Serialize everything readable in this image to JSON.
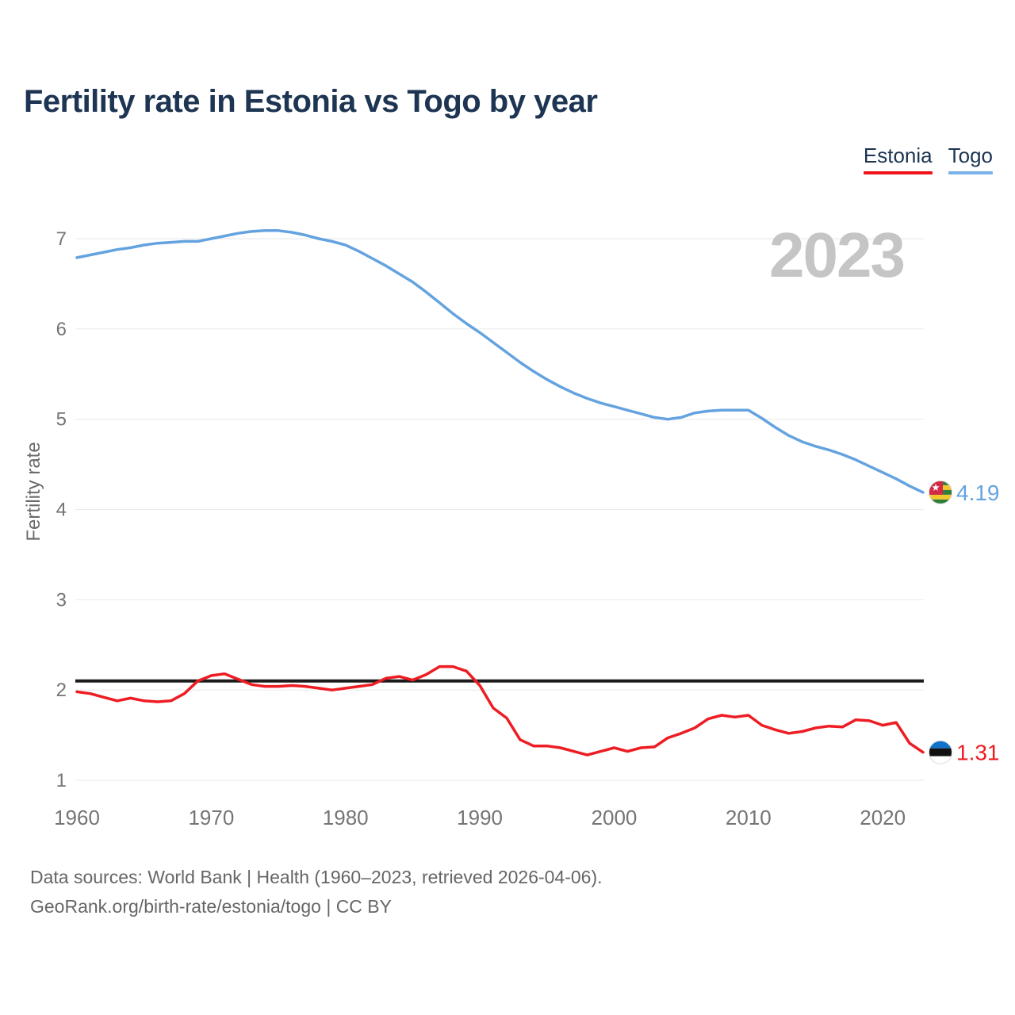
{
  "header": {
    "title": "Fertility rate in Estonia vs Togo by year"
  },
  "legend": {
    "items": [
      {
        "label": "Estonia",
        "color": "#f01318"
      },
      {
        "label": "Togo",
        "color": "#79b2e8"
      }
    ]
  },
  "chart_data": {
    "type": "line",
    "title": "Fertility rate in Estonia vs Togo by year",
    "xlabel": "",
    "ylabel": "Fertility rate",
    "watermark": "2023",
    "grid": true,
    "legend_position": "top-right",
    "xlim": [
      1960,
      2023
    ],
    "ylim": [
      1,
      7
    ],
    "x_ticks": [
      1960,
      1970,
      1980,
      1990,
      2000,
      2010,
      2020
    ],
    "y_ticks": [
      1,
      2,
      3,
      4,
      5,
      6,
      7
    ],
    "replacement_level_line": 2.1,
    "years": [
      1960,
      1961,
      1962,
      1963,
      1964,
      1965,
      1966,
      1967,
      1968,
      1969,
      1970,
      1971,
      1972,
      1973,
      1974,
      1975,
      1976,
      1977,
      1978,
      1979,
      1980,
      1981,
      1982,
      1983,
      1984,
      1985,
      1986,
      1987,
      1988,
      1989,
      1990,
      1991,
      1992,
      1993,
      1994,
      1995,
      1996,
      1997,
      1998,
      1999,
      2000,
      2001,
      2002,
      2003,
      2004,
      2005,
      2006,
      2007,
      2008,
      2009,
      2010,
      2011,
      2012,
      2013,
      2014,
      2015,
      2016,
      2017,
      2018,
      2019,
      2020,
      2021,
      2022,
      2023
    ],
    "series": [
      {
        "name": "Estonia",
        "color": "#ee1c23",
        "end_label": "1.31",
        "end_value": 1.31,
        "values": [
          1.98,
          1.96,
          1.92,
          1.88,
          1.91,
          1.88,
          1.87,
          1.88,
          1.96,
          2.1,
          2.16,
          2.18,
          2.12,
          2.06,
          2.04,
          2.04,
          2.05,
          2.04,
          2.02,
          2.0,
          2.02,
          2.04,
          2.06,
          2.13,
          2.15,
          2.11,
          2.17,
          2.26,
          2.26,
          2.21,
          2.05,
          1.8,
          1.69,
          1.45,
          1.38,
          1.38,
          1.36,
          1.32,
          1.28,
          1.32,
          1.36,
          1.32,
          1.36,
          1.37,
          1.47,
          1.52,
          1.58,
          1.68,
          1.72,
          1.7,
          1.72,
          1.61,
          1.56,
          1.52,
          1.54,
          1.58,
          1.6,
          1.59,
          1.67,
          1.66,
          1.61,
          1.64,
          1.41,
          1.31
        ]
      },
      {
        "name": "Togo",
        "color": "#64a3df",
        "end_label": "4.19",
        "end_value": 4.19,
        "values": [
          6.79,
          6.82,
          6.85,
          6.88,
          6.9,
          6.93,
          6.95,
          6.96,
          6.97,
          6.97,
          7.0,
          7.03,
          7.06,
          7.08,
          7.09,
          7.09,
          7.07,
          7.04,
          7.0,
          6.97,
          6.93,
          6.86,
          6.78,
          6.7,
          6.61,
          6.52,
          6.41,
          6.29,
          6.17,
          6.06,
          5.96,
          5.85,
          5.74,
          5.63,
          5.53,
          5.44,
          5.36,
          5.29,
          5.23,
          5.18,
          5.14,
          5.1,
          5.06,
          5.02,
          5.0,
          5.02,
          5.07,
          5.09,
          5.1,
          5.1,
          5.1,
          5.01,
          4.91,
          4.82,
          4.75,
          4.7,
          4.66,
          4.61,
          4.55,
          4.48,
          4.41,
          4.34,
          4.26,
          4.19
        ]
      }
    ]
  },
  "footer": {
    "line1": "Data sources: World Bank | Health (1960–2023, retrieved 2026-04-06).",
    "line2": "GeoRank.org/birth-rate/estonia/togo | CC BY"
  }
}
